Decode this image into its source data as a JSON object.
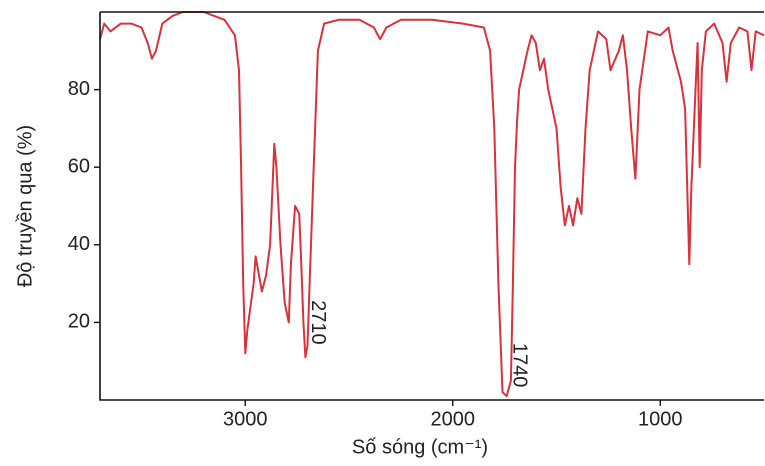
{
  "chart_data": {
    "type": "line",
    "xlabel": "Số sóng (cm⁻¹)",
    "ylabel": "Độ truyền qua (%)",
    "xlim": [
      3700,
      500
    ],
    "xticks": [
      3000,
      2000,
      1000
    ],
    "ylim": [
      0,
      100
    ],
    "yticks": [
      20,
      40,
      60,
      80
    ],
    "series": [
      {
        "color": "#d8323c",
        "x": [
          3700,
          3680,
          3650,
          3600,
          3550,
          3500,
          3470,
          3450,
          3430,
          3400,
          3350,
          3300,
          3200,
          3100,
          3050,
          3030,
          3020,
          3010,
          3000,
          2990,
          2960,
          2950,
          2940,
          2920,
          2900,
          2880,
          2860,
          2850,
          2830,
          2810,
          2790,
          2780,
          2760,
          2740,
          2730,
          2720,
          2710,
          2700,
          2690,
          2670,
          2650,
          2620,
          2550,
          2450,
          2380,
          2350,
          2320,
          2250,
          2100,
          1950,
          1850,
          1820,
          1800,
          1780,
          1760,
          1740,
          1720,
          1710,
          1700,
          1690,
          1680,
          1660,
          1640,
          1620,
          1600,
          1580,
          1560,
          1540,
          1500,
          1480,
          1460,
          1440,
          1420,
          1400,
          1380,
          1360,
          1340,
          1300,
          1260,
          1240,
          1200,
          1180,
          1160,
          1140,
          1120,
          1100,
          1060,
          1000,
          960,
          940,
          900,
          880,
          860,
          850,
          830,
          820,
          810,
          800,
          780,
          740,
          700,
          680,
          660,
          620,
          580,
          560,
          540,
          500
        ],
        "values": [
          93,
          97,
          95,
          97,
          97,
          96,
          92,
          88,
          90,
          97,
          99,
          100,
          100,
          98,
          94,
          85,
          60,
          30,
          12,
          18,
          30,
          37,
          34,
          28,
          32,
          40,
          66,
          60,
          40,
          25,
          20,
          35,
          50,
          48,
          35,
          20,
          11,
          14,
          30,
          60,
          90,
          97,
          98,
          98,
          96,
          93,
          96,
          98,
          98,
          97,
          96,
          90,
          70,
          30,
          2,
          1,
          5,
          30,
          60,
          72,
          80,
          85,
          90,
          94,
          92,
          85,
          88,
          80,
          70,
          55,
          45,
          50,
          45,
          52,
          48,
          70,
          85,
          95,
          93,
          85,
          90,
          94,
          85,
          70,
          57,
          80,
          95,
          94,
          96,
          90,
          82,
          75,
          35,
          55,
          80,
          92,
          60,
          85,
          95,
          97,
          92,
          82,
          92,
          96,
          95,
          85,
          95,
          94
        ]
      }
    ],
    "annotations": [
      {
        "text": "2710",
        "x": 2710,
        "y": 20
      },
      {
        "text": "1740",
        "x": 1740,
        "y": 9
      }
    ]
  }
}
